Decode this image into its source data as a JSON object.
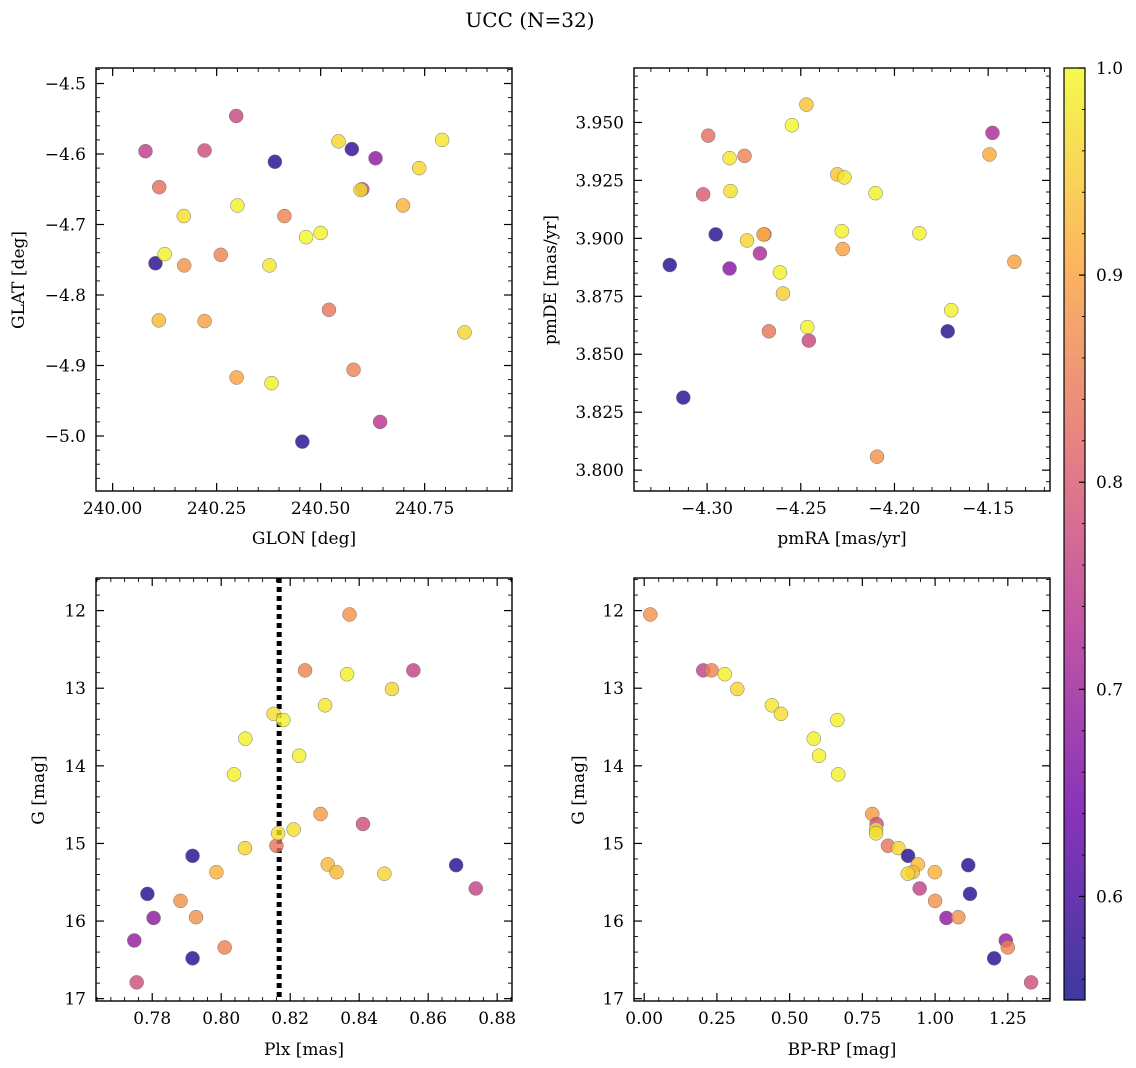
{
  "title": "UCC (N=32)",
  "colorbar": {
    "vmin": 0.55,
    "vmax": 1.0,
    "ticks": [
      0.6,
      0.7,
      0.8,
      0.9,
      1.0
    ],
    "tick_labels": [
      "0.6",
      "0.7",
      "0.8",
      "0.9",
      "1.0"
    ],
    "colormap": "plasma",
    "color_stops": [
      "#0d0887",
      "#6a00a8",
      "#b12a90",
      "#e16462",
      "#fca636",
      "#f0f921"
    ]
  },
  "chart_data": [
    {
      "type": "scatter",
      "xlabel": "GLON [deg]",
      "ylabel": "GLAT [deg]",
      "xlim": [
        239.96,
        240.96
      ],
      "ylim": [
        -5.078,
        -4.478
      ],
      "y_inverted": false,
      "xticks": [
        240.0,
        240.25,
        240.5,
        240.75
      ],
      "xtick_labels": [
        "240.00",
        "240.25",
        "240.50",
        "240.75"
      ],
      "yticks": [
        -5.0,
        -4.9,
        -4.8,
        -4.7,
        -4.6,
        -4.5
      ],
      "ytick_labels": [
        "−5.0",
        "−4.9",
        "−4.8",
        "−4.7",
        "−4.6",
        "−4.5"
      ],
      "points": [
        {
          "x": 240.079,
          "y": -4.596,
          "c": 0.75
        },
        {
          "x": 240.103,
          "y": -4.755,
          "c": 0.57
        },
        {
          "x": 240.112,
          "y": -4.647,
          "c": 0.83
        },
        {
          "x": 240.111,
          "y": -4.836,
          "c": 0.93
        },
        {
          "x": 240.125,
          "y": -4.742,
          "c": 0.99
        },
        {
          "x": 240.171,
          "y": -4.688,
          "c": 0.97
        },
        {
          "x": 240.172,
          "y": -4.758,
          "c": 0.88
        },
        {
          "x": 240.221,
          "y": -4.595,
          "c": 0.78
        },
        {
          "x": 240.221,
          "y": -4.837,
          "c": 0.9
        },
        {
          "x": 240.26,
          "y": -4.743,
          "c": 0.86
        },
        {
          "x": 240.297,
          "y": -4.546,
          "c": 0.77
        },
        {
          "x": 240.3,
          "y": -4.673,
          "c": 0.99
        },
        {
          "x": 240.298,
          "y": -4.917,
          "c": 0.9
        },
        {
          "x": 240.377,
          "y": -4.758,
          "c": 0.98
        },
        {
          "x": 240.382,
          "y": -4.925,
          "c": 0.99
        },
        {
          "x": 240.39,
          "y": -4.611,
          "c": 0.57
        },
        {
          "x": 240.413,
          "y": -4.688,
          "c": 0.86
        },
        {
          "x": 240.456,
          "y": -5.008,
          "c": 0.57
        },
        {
          "x": 240.465,
          "y": -4.718,
          "c": 1.0
        },
        {
          "x": 240.5,
          "y": -4.712,
          "c": 0.99
        },
        {
          "x": 240.52,
          "y": -4.821,
          "c": 0.84
        },
        {
          "x": 240.543,
          "y": -4.582,
          "c": 0.96
        },
        {
          "x": 240.575,
          "y": -4.593,
          "c": 0.58
        },
        {
          "x": 240.579,
          "y": -4.906,
          "c": 0.86
        },
        {
          "x": 240.6,
          "y": -4.65,
          "c": 0.76
        },
        {
          "x": 240.596,
          "y": -4.651,
          "c": 0.97
        },
        {
          "x": 240.632,
          "y": -4.606,
          "c": 0.68
        },
        {
          "x": 240.643,
          "y": -4.98,
          "c": 0.74
        },
        {
          "x": 240.698,
          "y": -4.673,
          "c": 0.92
        },
        {
          "x": 240.737,
          "y": -4.62,
          "c": 0.96
        },
        {
          "x": 240.792,
          "y": -4.58,
          "c": 0.98
        },
        {
          "x": 240.846,
          "y": -4.853,
          "c": 0.96
        }
      ]
    },
    {
      "type": "scatter",
      "xlabel": "pmRA [mas/yr]",
      "ylabel": "pmDE [mas/yr]",
      "xlim": [
        -4.339,
        -4.117
      ],
      "ylim": [
        3.791,
        3.9735
      ],
      "y_inverted": false,
      "xticks": [
        -4.3,
        -4.25,
        -4.2,
        -4.15
      ],
      "xtick_labels": [
        "−4.30",
        "−4.25",
        "−4.20",
        "−4.15"
      ],
      "yticks": [
        3.8,
        3.825,
        3.85,
        3.875,
        3.9,
        3.925,
        3.95
      ],
      "ytick_labels": [
        "3.800",
        "3.825",
        "3.850",
        "3.875",
        "3.900",
        "3.925",
        "3.950"
      ],
      "points": [
        {
          "x": -4.3199,
          "y": 3.8885,
          "c": 0.57
        },
        {
          "x": -4.3127,
          "y": 3.8313,
          "c": 0.57
        },
        {
          "x": -4.3021,
          "y": 3.919,
          "c": 0.8
        },
        {
          "x": -4.2994,
          "y": 3.9443,
          "c": 0.83
        },
        {
          "x": -4.2954,
          "y": 3.9017,
          "c": 0.57
        },
        {
          "x": -4.288,
          "y": 3.9346,
          "c": 0.98
        },
        {
          "x": -4.2875,
          "y": 3.9204,
          "c": 0.97
        },
        {
          "x": -4.288,
          "y": 3.887,
          "c": 0.67
        },
        {
          "x": -4.28,
          "y": 3.9356,
          "c": 0.86
        },
        {
          "x": -4.2787,
          "y": 3.8991,
          "c": 0.96
        },
        {
          "x": -4.2718,
          "y": 3.8935,
          "c": 0.72
        },
        {
          "x": -4.2694,
          "y": 3.9017,
          "c": 0.8
        },
        {
          "x": -4.2699,
          "y": 3.9017,
          "c": 0.92
        },
        {
          "x": -4.267,
          "y": 3.8599,
          "c": 0.84
        },
        {
          "x": -4.2611,
          "y": 3.8853,
          "c": 0.99
        },
        {
          "x": -4.2595,
          "y": 3.8762,
          "c": 0.95
        },
        {
          "x": -4.2547,
          "y": 3.9488,
          "c": 1.0
        },
        {
          "x": -4.247,
          "y": 3.9577,
          "c": 0.94
        },
        {
          "x": -4.2465,
          "y": 3.8617,
          "c": 0.99
        },
        {
          "x": -4.2457,
          "y": 3.8559,
          "c": 0.77
        },
        {
          "x": -4.2305,
          "y": 3.9276,
          "c": 0.94
        },
        {
          "x": -4.2281,
          "y": 3.9031,
          "c": 0.99
        },
        {
          "x": -4.2276,
          "y": 3.8954,
          "c": 0.9
        },
        {
          "x": -4.2267,
          "y": 3.9263,
          "c": 0.98
        },
        {
          "x": -4.2101,
          "y": 3.9195,
          "c": 0.99
        },
        {
          "x": -4.2093,
          "y": 3.8058,
          "c": 0.88
        },
        {
          "x": -4.1867,
          "y": 3.9022,
          "c": 0.99
        },
        {
          "x": -4.1716,
          "y": 3.8599,
          "c": 0.57
        },
        {
          "x": -4.1697,
          "y": 3.869,
          "c": 0.99
        },
        {
          "x": -4.1493,
          "y": 3.9362,
          "c": 0.91
        },
        {
          "x": -4.1477,
          "y": 3.9455,
          "c": 0.72
        },
        {
          "x": -4.136,
          "y": 3.8899,
          "c": 0.9
        }
      ]
    },
    {
      "type": "scatter",
      "xlabel": "Plx [mas]",
      "ylabel": "G [mag]",
      "xlim": [
        0.7637,
        0.8843
      ],
      "ylim": [
        11.58,
        17.03
      ],
      "y_inverted": true,
      "vline": {
        "x": 0.8168,
        "style": "dotted",
        "color": "#000000"
      },
      "xticks": [
        0.78,
        0.8,
        0.82,
        0.84,
        0.86,
        0.88
      ],
      "xtick_labels": [
        "0.78",
        "0.80",
        "0.82",
        "0.84",
        "0.86",
        "0.88"
      ],
      "yticks": [
        12,
        13,
        14,
        15,
        16,
        17
      ],
      "ytick_labels": [
        "12",
        "13",
        "14",
        "15",
        "16",
        "17"
      ],
      "points": [
        {
          "x": 0.7748,
          "y": 16.25,
          "c": 0.69
        },
        {
          "x": 0.7755,
          "y": 16.79,
          "c": 0.78
        },
        {
          "x": 0.7786,
          "y": 15.65,
          "c": 0.57
        },
        {
          "x": 0.7804,
          "y": 15.96,
          "c": 0.68
        },
        {
          "x": 0.7882,
          "y": 15.74,
          "c": 0.88
        },
        {
          "x": 0.7917,
          "y": 15.16,
          "c": 0.57
        },
        {
          "x": 0.7917,
          "y": 16.48,
          "c": 0.57
        },
        {
          "x": 0.7927,
          "y": 15.95,
          "c": 0.88
        },
        {
          "x": 0.7986,
          "y": 15.37,
          "c": 0.92
        },
        {
          "x": 0.801,
          "y": 16.34,
          "c": 0.86
        },
        {
          "x": 0.8037,
          "y": 14.11,
          "c": 0.99
        },
        {
          "x": 0.807,
          "y": 13.65,
          "c": 0.99
        },
        {
          "x": 0.8069,
          "y": 15.06,
          "c": 0.96
        },
        {
          "x": 0.8152,
          "y": 13.33,
          "c": 0.97
        },
        {
          "x": 0.816,
          "y": 15.03,
          "c": 0.84
        },
        {
          "x": 0.8165,
          "y": 14.87,
          "c": 0.97
        },
        {
          "x": 0.818,
          "y": 13.41,
          "c": 0.99
        },
        {
          "x": 0.821,
          "y": 14.82,
          "c": 0.97
        },
        {
          "x": 0.8226,
          "y": 13.87,
          "c": 0.99
        },
        {
          "x": 0.8243,
          "y": 12.77,
          "c": 0.86
        },
        {
          "x": 0.8288,
          "y": 14.62,
          "c": 0.89
        },
        {
          "x": 0.8301,
          "y": 13.22,
          "c": 0.98
        },
        {
          "x": 0.8309,
          "y": 15.27,
          "c": 0.93
        },
        {
          "x": 0.8334,
          "y": 15.37,
          "c": 0.93
        },
        {
          "x": 0.8365,
          "y": 12.82,
          "c": 0.99
        },
        {
          "x": 0.8372,
          "y": 12.05,
          "c": 0.88
        },
        {
          "x": 0.8411,
          "y": 14.75,
          "c": 0.78
        },
        {
          "x": 0.8473,
          "y": 15.39,
          "c": 0.96
        },
        {
          "x": 0.8495,
          "y": 13.01,
          "c": 0.96
        },
        {
          "x": 0.8557,
          "y": 12.77,
          "c": 0.76
        },
        {
          "x": 0.8681,
          "y": 15.28,
          "c": 0.57
        },
        {
          "x": 0.8738,
          "y": 15.58,
          "c": 0.76
        }
      ]
    },
    {
      "type": "scatter",
      "xlabel": "BP-RP [mag]",
      "ylabel": "G [mag]",
      "xlim": [
        -0.035,
        1.395
      ],
      "ylim": [
        11.58,
        17.03
      ],
      "y_inverted": true,
      "xticks": [
        0.0,
        0.25,
        0.5,
        0.75,
        1.0,
        1.25
      ],
      "xtick_labels": [
        "0.00",
        "0.25",
        "0.50",
        "0.75",
        "1.00",
        "1.25"
      ],
      "yticks": [
        12,
        13,
        14,
        15,
        16,
        17
      ],
      "ytick_labels": [
        "12",
        "13",
        "14",
        "15",
        "16",
        "17"
      ],
      "points": [
        {
          "x": 0.021,
          "y": 12.05,
          "c": 0.88
        },
        {
          "x": 0.203,
          "y": 12.77,
          "c": 0.76
        },
        {
          "x": 0.232,
          "y": 12.77,
          "c": 0.86
        },
        {
          "x": 0.277,
          "y": 12.82,
          "c": 0.99
        },
        {
          "x": 0.32,
          "y": 13.01,
          "c": 0.96
        },
        {
          "x": 0.439,
          "y": 13.22,
          "c": 0.98
        },
        {
          "x": 0.47,
          "y": 13.33,
          "c": 0.97
        },
        {
          "x": 0.583,
          "y": 13.65,
          "c": 0.99
        },
        {
          "x": 0.601,
          "y": 13.87,
          "c": 0.99
        },
        {
          "x": 0.664,
          "y": 13.41,
          "c": 0.99
        },
        {
          "x": 0.667,
          "y": 14.11,
          "c": 0.99
        },
        {
          "x": 0.784,
          "y": 14.62,
          "c": 0.89
        },
        {
          "x": 0.799,
          "y": 14.75,
          "c": 0.78
        },
        {
          "x": 0.797,
          "y": 14.82,
          "c": 0.97
        },
        {
          "x": 0.797,
          "y": 14.87,
          "c": 0.97
        },
        {
          "x": 0.838,
          "y": 15.03,
          "c": 0.84
        },
        {
          "x": 0.874,
          "y": 15.06,
          "c": 0.96
        },
        {
          "x": 0.907,
          "y": 15.16,
          "c": 0.57
        },
        {
          "x": 0.941,
          "y": 15.27,
          "c": 0.93
        },
        {
          "x": 0.923,
          "y": 15.37,
          "c": 0.93
        },
        {
          "x": 0.906,
          "y": 15.39,
          "c": 0.96
        },
        {
          "x": 0.999,
          "y": 15.37,
          "c": 0.92
        },
        {
          "x": 0.947,
          "y": 15.58,
          "c": 0.76
        },
        {
          "x": 1.114,
          "y": 15.28,
          "c": 0.57
        },
        {
          "x": 1.12,
          "y": 15.65,
          "c": 0.57
        },
        {
          "x": 1.0,
          "y": 15.74,
          "c": 0.88
        },
        {
          "x": 1.039,
          "y": 15.96,
          "c": 0.68
        },
        {
          "x": 1.08,
          "y": 15.95,
          "c": 0.88
        },
        {
          "x": 1.203,
          "y": 16.48,
          "c": 0.57
        },
        {
          "x": 1.243,
          "y": 16.25,
          "c": 0.69
        },
        {
          "x": 1.25,
          "y": 16.34,
          "c": 0.86
        },
        {
          "x": 1.33,
          "y": 16.79,
          "c": 0.78
        }
      ]
    }
  ]
}
